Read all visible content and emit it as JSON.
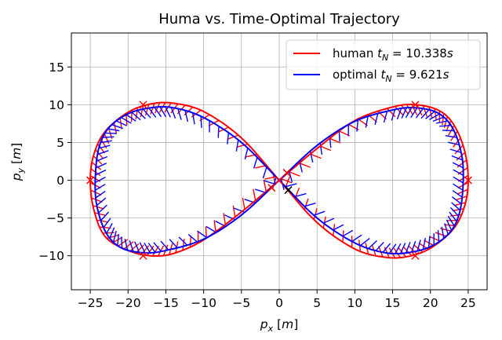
{
  "chart_data": {
    "type": "line",
    "title": "Huma vs. Time-Optimal Trajectory",
    "xlabel": "p_x [m]",
    "ylabel": "p_y [m]",
    "xlim": [
      -27.5,
      27.5
    ],
    "ylim": [
      -14.5,
      19.5
    ],
    "xticks": [
      -25,
      -20,
      -15,
      -10,
      -5,
      0,
      5,
      10,
      15,
      20,
      25
    ],
    "xtick_labels": [
      "−25",
      "−20",
      "−15",
      "−10",
      "−5",
      "0",
      "5",
      "10",
      "15",
      "20",
      "25"
    ],
    "yticks": [
      -10,
      -5,
      0,
      5,
      10,
      15
    ],
    "ytick_labels": [
      "−10",
      "−5",
      "0",
      "5",
      "10",
      "15"
    ],
    "grid": true,
    "legend_position": "top-right",
    "waypoints": [
      {
        "x": -25,
        "y": 0
      },
      {
        "x": -18,
        "y": 10
      },
      {
        "x": -18,
        "y": -10
      },
      {
        "x": 0,
        "y": 0
      },
      {
        "x": 1,
        "y": 1
      },
      {
        "x": -1,
        "y": -1
      },
      {
        "x": 18,
        "y": 10
      },
      {
        "x": 18,
        "y": -10
      },
      {
        "x": 25,
        "y": 0
      }
    ],
    "gate_marker": {
      "x": 1.2,
      "y": -1.3
    },
    "series": [
      {
        "name": "human",
        "legend_label": "human t_N = 10.338s",
        "color": "#ff0000",
        "x": [
          0,
          5,
          10,
          15,
          18,
          21,
          23,
          24.5,
          25,
          24.5,
          23,
          20,
          17,
          14,
          10,
          5,
          0,
          -5,
          -10,
          -14,
          -17,
          -20,
          -23,
          -24.5,
          -25,
          -24.5,
          -23,
          -20,
          -17,
          -14,
          -10,
          -5,
          0
        ],
        "y": [
          0,
          4.2,
          7.9,
          9.7,
          10.0,
          9.3,
          7.5,
          4.0,
          0.0,
          -3.5,
          -6.5,
          -9.0,
          -10.1,
          -10.2,
          -9.1,
          -5.6,
          0.0,
          5.6,
          9.1,
          10.2,
          10.1,
          9.0,
          6.5,
          3.5,
          0.0,
          -4.0,
          -7.5,
          -9.3,
          -10.0,
          -9.7,
          -7.9,
          -4.2,
          0.0
        ]
      },
      {
        "name": "optimal",
        "legend_label": "optimal t_N = 9.621s",
        "color": "#0000ff",
        "x": [
          0,
          5,
          10,
          15,
          18,
          21,
          23,
          24.2,
          24.3,
          23.8,
          22.5,
          20,
          17,
          14,
          10,
          5,
          0,
          -5,
          -10,
          -14,
          -17,
          -20,
          -22.5,
          -23.8,
          -24.3,
          -24.2,
          -23,
          -21,
          -18,
          -15,
          -10,
          -5,
          0
        ],
        "y": [
          0,
          4.6,
          7.8,
          9.3,
          9.6,
          8.9,
          6.8,
          3.0,
          -1.0,
          -4.5,
          -7.0,
          -8.8,
          -9.6,
          -9.6,
          -8.3,
          -5.0,
          0.0,
          5.0,
          8.3,
          9.6,
          9.6,
          8.8,
          7.0,
          4.5,
          1.0,
          -3.0,
          -6.8,
          -8.9,
          -9.6,
          -9.3,
          -7.8,
          -4.6,
          0.0
        ]
      }
    ]
  }
}
